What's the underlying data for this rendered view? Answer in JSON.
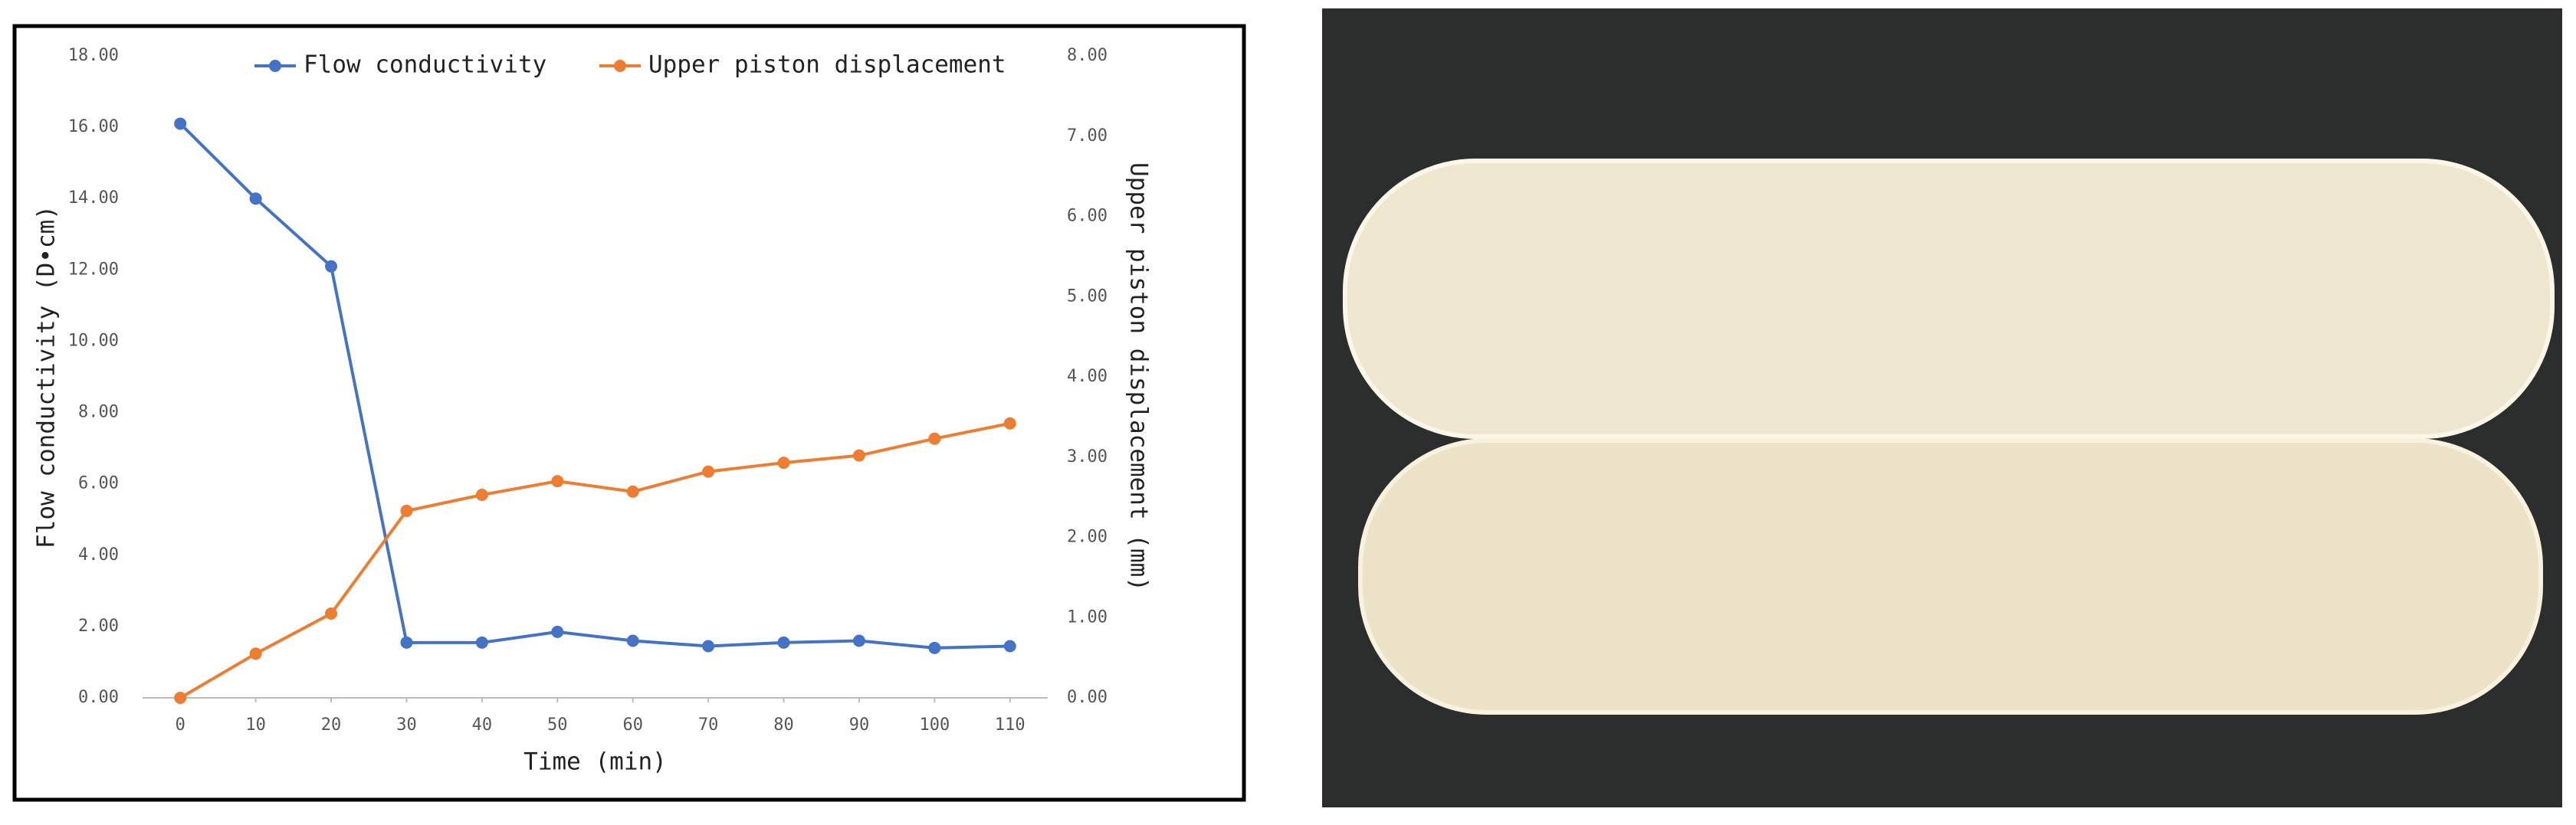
{
  "chart_data": {
    "type": "line",
    "x": [
      0,
      10,
      20,
      30,
      40,
      50,
      60,
      70,
      80,
      90,
      100,
      110
    ],
    "series": [
      {
        "name": "Flow conductivity",
        "color": "#4472c4",
        "values": [
          16.1,
          14.0,
          12.1,
          1.55,
          1.55,
          1.85,
          1.6,
          1.45,
          1.55,
          1.6,
          1.4,
          1.45
        ]
      },
      {
        "name": "Upper piston displacement",
        "color": "#ed7d31",
        "axis": "y2",
        "values": [
          0,
          0.55,
          1.05,
          2.33,
          2.53,
          2.7,
          2.57,
          2.82,
          2.93,
          3.02,
          3.23,
          3.42
        ]
      }
    ],
    "x_label": "Time (min)",
    "y_label": "Flow conductivity (D•cm)",
    "y2_label": "Upper piston displacement (mm)",
    "xlim": [
      -5,
      115
    ],
    "xticks": [
      0,
      10,
      20,
      30,
      40,
      50,
      60,
      70,
      80,
      90,
      100,
      110
    ],
    "ylim": [
      0,
      18
    ],
    "yticks": [
      {
        "value": 0,
        "label": "0.00"
      },
      {
        "value": 2,
        "label": "2.00"
      },
      {
        "value": 4,
        "label": "4.00"
      },
      {
        "value": 6,
        "label": "6.00"
      },
      {
        "value": 8,
        "label": "8.00"
      },
      {
        "value": 10,
        "label": "10.00"
      },
      {
        "value": 12,
        "label": "12.00"
      },
      {
        "value": 14,
        "label": "14.00"
      },
      {
        "value": 16,
        "label": "16.00"
      },
      {
        "value": 18,
        "label": "18.00"
      }
    ],
    "y2lim": [
      0,
      8
    ],
    "y2ticks": [
      {
        "value": 0,
        "label": "0.00"
      },
      {
        "value": 1,
        "label": "1.00"
      },
      {
        "value": 2,
        "label": "2.00"
      },
      {
        "value": 3,
        "label": "3.00"
      },
      {
        "value": 4,
        "label": "4.00"
      },
      {
        "value": 5,
        "label": "5.00"
      },
      {
        "value": 6,
        "label": "6.00"
      },
      {
        "value": 7,
        "label": "7.00"
      },
      {
        "value": 8,
        "label": "8.00"
      }
    ],
    "legend": "top",
    "grid": false
  }
}
